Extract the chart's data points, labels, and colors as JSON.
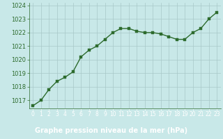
{
  "x": [
    0,
    1,
    2,
    3,
    4,
    5,
    6,
    7,
    8,
    9,
    10,
    11,
    12,
    13,
    14,
    15,
    16,
    17,
    18,
    19,
    20,
    21,
    22,
    23
  ],
  "y": [
    1016.6,
    1017.0,
    1017.8,
    1018.4,
    1018.7,
    1019.1,
    1020.2,
    1020.7,
    1021.0,
    1021.5,
    1022.0,
    1022.3,
    1022.3,
    1022.1,
    1022.0,
    1022.0,
    1021.9,
    1021.7,
    1021.5,
    1021.5,
    1022.0,
    1022.3,
    1023.0,
    1023.5
  ],
  "line_color": "#2d6b2d",
  "marker_color": "#2d6b2d",
  "bg_color": "#c8e8e8",
  "plot_bg_color": "#c8e8e8",
  "bottom_bg_color": "#3a7a3a",
  "grid_color": "#a8c8c8",
  "xlabel": "Graphe pression niveau de la mer (hPa)",
  "xlabel_color": "#ffffff",
  "tick_color": "#2d6b2d",
  "bottom_tick_color": "#ffffff",
  "ylim": [
    1016.4,
    1024.2
  ],
  "yticks": [
    1017,
    1018,
    1019,
    1020,
    1021,
    1022,
    1023,
    1024
  ],
  "xticks": [
    0,
    1,
    2,
    3,
    4,
    5,
    6,
    7,
    8,
    9,
    10,
    11,
    12,
    13,
    14,
    15,
    16,
    17,
    18,
    19,
    20,
    21,
    22,
    23
  ],
  "tick_fontsize": 6,
  "label_fontsize": 7,
  "line_width": 1.0,
  "marker_size": 2.5
}
